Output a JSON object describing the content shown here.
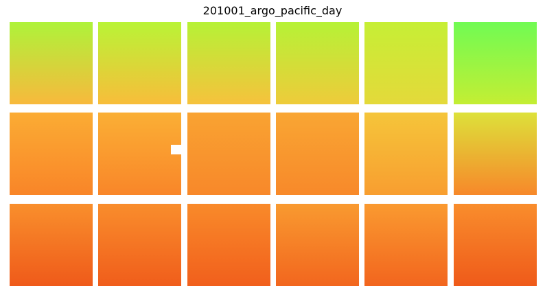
{
  "figure": {
    "title": "201001_argo_pacific_day"
  },
  "chart_data": {
    "type": "heatmap",
    "title": "201001_argo_pacific_day",
    "grid": false,
    "rows": 3,
    "cols": 6,
    "colormap": "green-yellow-orange-red",
    "panels": [
      {
        "row": 0,
        "col": 0,
        "colors": {
          "top": "#aef33a",
          "bottom": "#f8b93c"
        }
      },
      {
        "row": 0,
        "col": 1,
        "colors": {
          "top": "#b9f436",
          "bottom": "#f8bd3a"
        }
      },
      {
        "row": 0,
        "col": 2,
        "colors": {
          "top": "#b6f236",
          "bottom": "#f6c23c"
        }
      },
      {
        "row": 0,
        "col": 3,
        "colors": {
          "top": "#b6f236",
          "bottom": "#eecb3a"
        }
      },
      {
        "row": 0,
        "col": 4,
        "colors": {
          "top": "#c6ef35",
          "bottom": "#e4d93a"
        }
      },
      {
        "row": 0,
        "col": 5,
        "colors": {
          "top": "#70fb53",
          "bottom": "#c4ee33"
        }
      },
      {
        "row": 1,
        "col": 0,
        "colors": {
          "top": "#fbac34",
          "bottom": "#f98528"
        }
      },
      {
        "row": 1,
        "col": 1,
        "colors": {
          "top": "#faaf35",
          "bottom": "#f98629",
          "white_patch": true
        }
      },
      {
        "row": 1,
        "col": 2,
        "colors": {
          "top": "#f9a332",
          "bottom": "#f8882a"
        }
      },
      {
        "row": 1,
        "col": 3,
        "colors": {
          "top": "#f9a633",
          "bottom": "#f8892a"
        }
      },
      {
        "row": 1,
        "col": 4,
        "colors": {
          "top": "#f5c53a",
          "bottom": "#f89e30"
        }
      },
      {
        "row": 1,
        "col": 5,
        "colors": {
          "top": "#dde13a",
          "bottom": "#f7882a"
        }
      },
      {
        "row": 2,
        "col": 0,
        "colors": {
          "top": "#f98f2c",
          "bottom": "#ef5a1a"
        }
      },
      {
        "row": 2,
        "col": 1,
        "colors": {
          "top": "#f98d2c",
          "bottom": "#f05d1b"
        }
      },
      {
        "row": 2,
        "col": 2,
        "colors": {
          "top": "#f98a2a",
          "bottom": "#f15f1c"
        }
      },
      {
        "row": 2,
        "col": 3,
        "colors": {
          "top": "#f99a30",
          "bottom": "#f2661e"
        }
      },
      {
        "row": 2,
        "col": 4,
        "colors": {
          "top": "#fa9a30",
          "bottom": "#f2651e"
        }
      },
      {
        "row": 2,
        "col": 5,
        "colors": {
          "top": "#f98d2c",
          "bottom": "#ef5a1a"
        }
      }
    ]
  }
}
